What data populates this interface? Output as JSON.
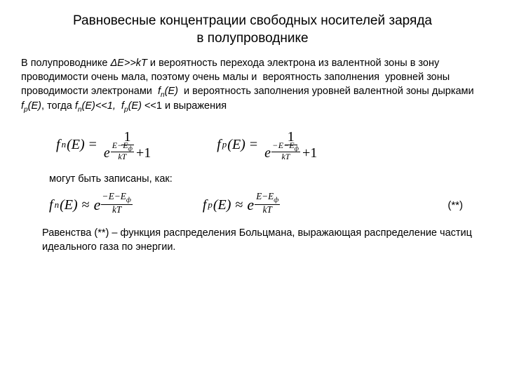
{
  "title_line1": "Равновесные концентрации свободных носителей заряда",
  "title_line2": "в полупроводнике",
  "para1_seg1": "В полупроводнике ",
  "para1_deltaE": "ΔE>>kT",
  "para1_seg2": " и вероятность перехода электрона из валентной зоны в зону проводимости очень мала, поэтому очень малы и  вероятность заполнения  уровней зоны проводимости электронами  ",
  "para1_fn": "f",
  "para1_fn_sub": "n",
  "para1_fnE": "(E)",
  "para1_seg3": "  и вероятность заполнения уровней валентной зоны дырками  ",
  "para1_fp": "f",
  "para1_fp_sub": "p",
  "para1_fpE": "(E)",
  "para1_seg4": ", тогда ",
  "para1_fn2": "f",
  "para1_fn2_sub": "n",
  "para1_fn2E": "(E)<<1,  ",
  "para1_fp2": "f",
  "para1_fp2_sub": "p",
  "para1_fp2E": "(E)",
  "para1_seg5": " <<1 и выражения",
  "after_eq_text": "могут быть записаны, как:",
  "marker": "(**)",
  "final_text": "Равенства (**) – функция распределения Больцмана, выражающая распределение частиц идеального газа по энергии.",
  "math": {
    "one": "1",
    "e": "e",
    "plus1": "+1",
    "fn": "f",
    "n": "n",
    "p": "p",
    "E": "(E)",
    "eq": "=",
    "approx": "≈",
    "exp_num": "E−E",
    "phi": "ф",
    "exp_num_single": "E",
    "neg": "−",
    "kT": "kT"
  }
}
